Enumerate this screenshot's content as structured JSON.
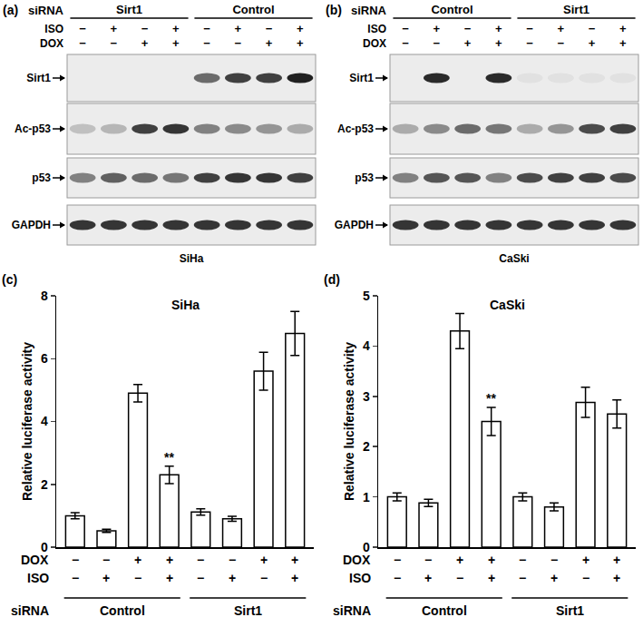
{
  "blots": [
    {
      "panel": "(a)",
      "cell_line": "SiHa",
      "siRNA_label": "siRNA",
      "groups": [
        {
          "label": "Sirt1",
          "lanes": 4
        },
        {
          "label": "Control",
          "lanes": 4
        }
      ],
      "conditions": [
        {
          "label": "ISO",
          "signs": [
            "−",
            "+",
            "−",
            "+",
            "−",
            "+",
            "−",
            "+"
          ]
        },
        {
          "label": "DOX",
          "signs": [
            "−",
            "−",
            "+",
            "+",
            "−",
            "−",
            "+",
            "+"
          ]
        }
      ],
      "rows": [
        {
          "label": "Sirt1",
          "bands": [
            0,
            0,
            0,
            0,
            0.6,
            0.8,
            0.8,
            0.95
          ]
        },
        {
          "label": "Ac-p53",
          "bands": [
            0.2,
            0.25,
            0.8,
            0.85,
            0.5,
            0.45,
            0.4,
            0.3
          ]
        },
        {
          "label": "p53",
          "bands": [
            0.5,
            0.65,
            0.6,
            0.55,
            0.8,
            0.85,
            0.85,
            0.8
          ]
        },
        {
          "label": "GAPDH",
          "bands": [
            0.85,
            0.85,
            0.85,
            0.85,
            0.85,
            0.85,
            0.85,
            0.85
          ]
        }
      ]
    },
    {
      "panel": "(b)",
      "cell_line": "CaSki",
      "siRNA_label": "siRNA",
      "groups": [
        {
          "label": "Control",
          "lanes": 4
        },
        {
          "label": "Sirt1",
          "lanes": 4
        }
      ],
      "conditions": [
        {
          "label": "ISO",
          "signs": [
            "−",
            "+",
            "−",
            "+",
            "−",
            "+",
            "−",
            "+"
          ]
        },
        {
          "label": "DOX",
          "signs": [
            "−",
            "−",
            "+",
            "+",
            "−",
            "−",
            "+",
            "+"
          ]
        }
      ],
      "rows": [
        {
          "label": "Sirt1",
          "bands": [
            0,
            0.9,
            0,
            0.9,
            0.05,
            0.05,
            0.05,
            0.05
          ]
        },
        {
          "label": "Ac-p53",
          "bands": [
            0.3,
            0.45,
            0.6,
            0.55,
            0.3,
            0.4,
            0.75,
            0.8
          ]
        },
        {
          "label": "p53",
          "bands": [
            0.5,
            0.7,
            0.7,
            0.5,
            0.75,
            0.8,
            0.8,
            0.75
          ]
        },
        {
          "label": "GAPDH",
          "bands": [
            0.85,
            0.85,
            0.85,
            0.85,
            0.85,
            0.85,
            0.85,
            0.85
          ]
        }
      ]
    }
  ],
  "chart_data": [
    {
      "type": "bar",
      "panel": "(c)",
      "title": "SiHa",
      "y_label": "Relative luciferase activity",
      "categories": [
        null,
        null,
        null,
        null,
        null,
        null,
        null,
        null
      ],
      "values": [
        1.0,
        0.52,
        4.9,
        2.3,
        1.12,
        0.9,
        5.6,
        6.8
      ],
      "errors": [
        0.1,
        0.05,
        0.28,
        0.28,
        0.1,
        0.08,
        0.6,
        0.7
      ],
      "value_notes": [
        null,
        null,
        null,
        "**",
        null,
        null,
        null,
        null
      ],
      "color": "#ffffff",
      "ylim": [
        0,
        8
      ],
      "yticks": [
        0,
        2,
        4,
        6,
        8
      ],
      "grid": false,
      "tick_labels": "y",
      "conditions": [
        {
          "label": "DOX",
          "signs": [
            "−",
            "−",
            "+",
            "+",
            "−",
            "−",
            "+",
            "+"
          ]
        },
        {
          "label": "ISO",
          "signs": [
            "−",
            "+",
            "−",
            "+",
            "−",
            "+",
            "−",
            "+"
          ]
        }
      ],
      "groups_label": "siRNA",
      "groups": [
        {
          "label": "Control",
          "span": 4
        },
        {
          "label": "Sirt1",
          "span": 4
        }
      ]
    },
    {
      "type": "bar",
      "panel": "(d)",
      "title": "CaSki",
      "y_label": "Relative luciferase activity",
      "categories": [
        null,
        null,
        null,
        null,
        null,
        null,
        null,
        null
      ],
      "values": [
        1.0,
        0.88,
        4.3,
        2.5,
        1.0,
        0.8,
        2.88,
        2.65
      ],
      "errors": [
        0.08,
        0.07,
        0.35,
        0.28,
        0.08,
        0.08,
        0.3,
        0.28
      ],
      "value_notes": [
        null,
        null,
        null,
        "**",
        null,
        null,
        null,
        null
      ],
      "color": "#ffffff",
      "ylim": [
        0,
        5
      ],
      "yticks": [
        0,
        1,
        2,
        3,
        4,
        5
      ],
      "grid": false,
      "tick_labels": "y",
      "conditions": [
        {
          "label": "DOX",
          "signs": [
            "−",
            "−",
            "+",
            "+",
            "−",
            "−",
            "+",
            "+"
          ]
        },
        {
          "label": "ISO",
          "signs": [
            "−",
            "+",
            "−",
            "+",
            "−",
            "+",
            "−",
            "+"
          ]
        }
      ],
      "groups_label": "siRNA",
      "groups": [
        {
          "label": "Control",
          "span": 4
        },
        {
          "label": "Sirt1",
          "span": 4
        }
      ]
    }
  ]
}
